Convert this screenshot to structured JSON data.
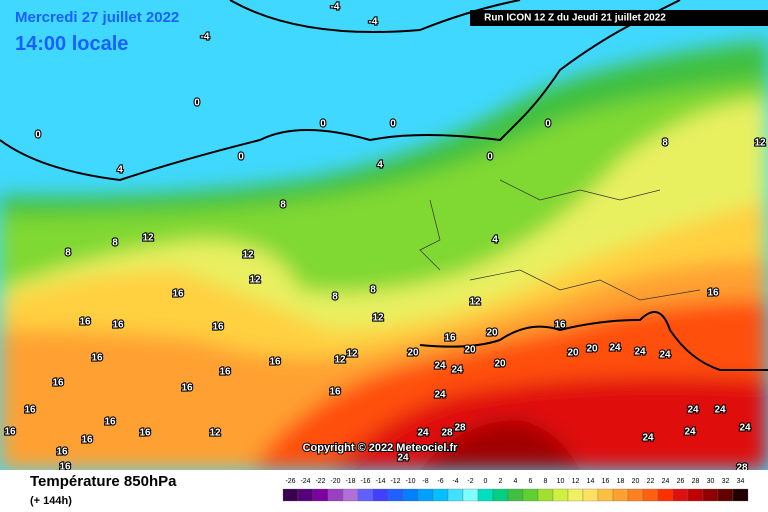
{
  "header": {
    "date": "Mercredi 27 juillet 2022",
    "time": "14:00 locale",
    "run": "Run ICON 12 Z du Jeudi 21 juillet 2022"
  },
  "copyright": "Copyright © 2022 Meteociel.fr",
  "footer": {
    "title": "Température 850hPa",
    "lead": "(+ 144h)"
  },
  "scale": {
    "values": [
      -26,
      -24,
      -22,
      -20,
      -18,
      -16,
      -14,
      -12,
      -10,
      -8,
      -6,
      -4,
      -2,
      0,
      2,
      4,
      6,
      8,
      10,
      12,
      14,
      16,
      18,
      20,
      22,
      24,
      26,
      28,
      30,
      32,
      34
    ],
    "colors": [
      "#3a0050",
      "#55007a",
      "#7a00a0",
      "#9a40c0",
      "#b070d8",
      "#6060ff",
      "#4040ff",
      "#2060ff",
      "#0080ff",
      "#00a0ff",
      "#00c0ff",
      "#40e0ff",
      "#80ffff",
      "#00e0c0",
      "#00d080",
      "#40c040",
      "#60d030",
      "#a0e030",
      "#d0f040",
      "#f0f060",
      "#ffe060",
      "#ffc040",
      "#ffa030",
      "#ff8020",
      "#ff6010",
      "#ff3000",
      "#e01010",
      "#c00000",
      "#900000",
      "#600000",
      "#200000"
    ]
  },
  "contour_labels": [
    -4,
    -4,
    -4,
    0,
    0,
    0,
    0,
    0,
    0,
    0,
    4,
    4,
    4,
    8,
    8,
    8,
    12,
    12,
    12,
    16,
    8,
    8,
    12,
    12,
    16,
    16,
    16,
    16,
    16,
    16,
    16,
    16,
    16,
    12,
    12,
    16,
    16,
    20,
    20,
    20,
    20,
    20,
    20,
    24,
    24,
    24,
    24,
    24,
    24,
    24,
    28,
    28,
    24,
    24,
    24,
    24,
    24,
    28,
    24,
    16,
    8,
    12,
    16,
    16,
    16,
    16,
    16,
    12,
    16,
    16
  ]
}
